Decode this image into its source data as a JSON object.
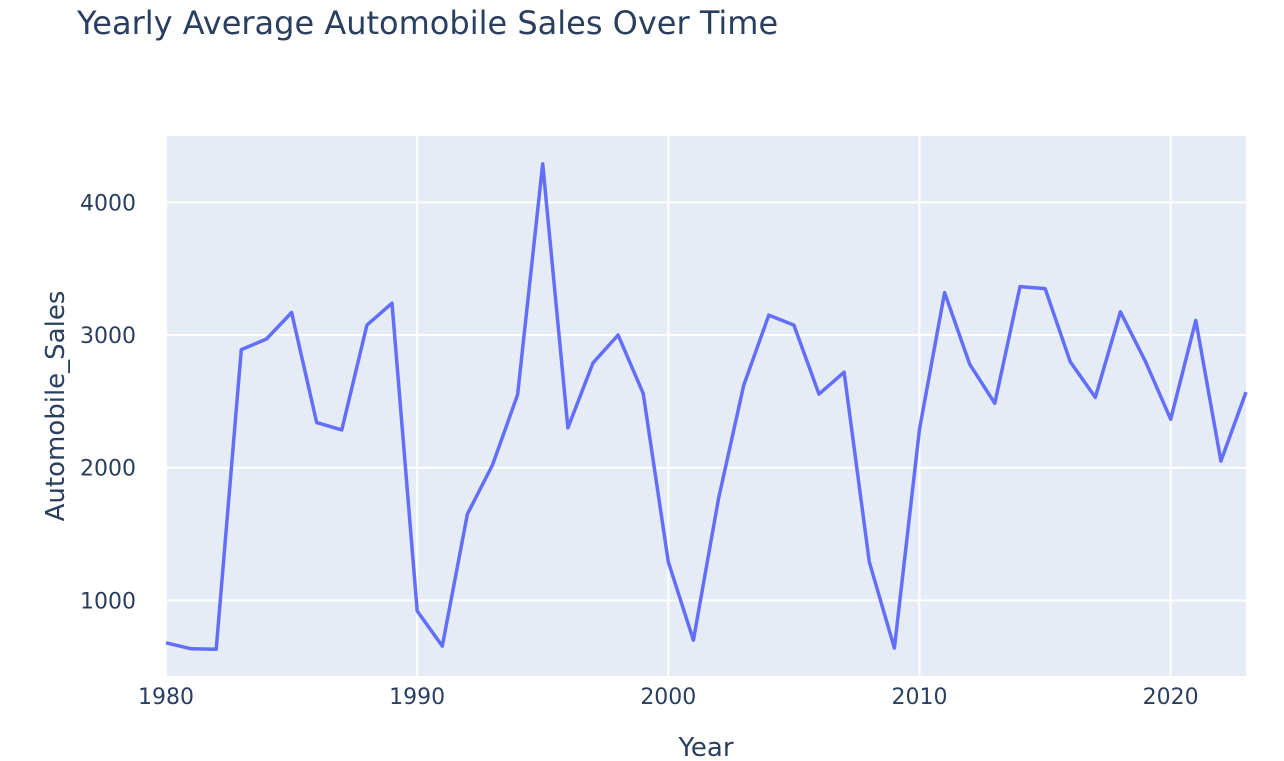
{
  "chart_data": {
    "type": "line",
    "title": "Yearly Average Automobile Sales Over Time",
    "xlabel": "Year",
    "ylabel": "Automobile_Sales",
    "xlim": [
      1980,
      2023
    ],
    "ylim": [
      430,
      4500
    ],
    "x_ticks": [
      1980,
      1990,
      2000,
      2010,
      2020
    ],
    "y_ticks": [
      1000,
      2000,
      3000,
      4000
    ],
    "grid": true,
    "line_color": "#636efa",
    "plot_background": "#e5ecf6",
    "series": [
      {
        "x": [
          1980,
          1981,
          1982,
          1983,
          1984,
          1985,
          1986,
          1987,
          1988,
          1989,
          1990,
          1991,
          1992,
          1993,
          1994,
          1995,
          1996,
          1997,
          1998,
          1999,
          2000,
          2001,
          2002,
          2003,
          2004,
          2005,
          2006,
          2007,
          2008,
          2009,
          2010,
          2011,
          2012,
          2013,
          2014,
          2015,
          2016,
          2017,
          2018,
          2019,
          2020,
          2021,
          2022,
          2023
        ],
        "y": [
          680,
          635,
          632,
          2890,
          2970,
          3170,
          2340,
          2285,
          3075,
          3240,
          920,
          655,
          1650,
          2020,
          2550,
          4290,
          2300,
          2790,
          3000,
          2560,
          1290,
          700,
          1770,
          2620,
          3150,
          3075,
          2555,
          2720,
          1290,
          640,
          2290,
          3320,
          2780,
          2485,
          3365,
          3350,
          2800,
          2530,
          3175,
          2800,
          2365,
          3110,
          2050,
          2570
        ]
      }
    ]
  }
}
